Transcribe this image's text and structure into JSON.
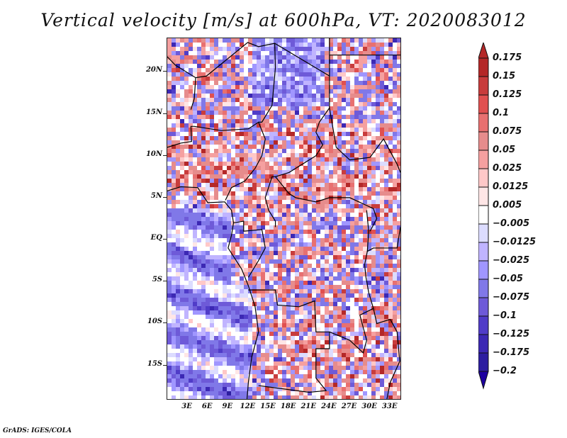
{
  "title": "Vertical velocity [m/s] at 600hPa, VT: 2020083012",
  "footer": "GrADS: IGES/COLA",
  "map": {
    "region": "Central/West Africa",
    "lat_range": [
      -19,
      24
    ],
    "lon_range": [
      0,
      34.5
    ],
    "y_ticks": [
      {
        "label": "20N",
        "lat": 20
      },
      {
        "label": "15N",
        "lat": 15
      },
      {
        "label": "10N",
        "lat": 10
      },
      {
        "label": "5N",
        "lat": 5
      },
      {
        "label": "EQ",
        "lat": 0
      },
      {
        "label": "5S",
        "lat": -5
      },
      {
        "label": "10S",
        "lat": -10
      },
      {
        "label": "15S",
        "lat": -15
      }
    ],
    "x_ticks": [
      {
        "label": "3E",
        "lon": 3
      },
      {
        "label": "6E",
        "lon": 6
      },
      {
        "label": "9E",
        "lon": 9
      },
      {
        "label": "12E",
        "lon": 12
      },
      {
        "label": "15E",
        "lon": 15
      },
      {
        "label": "18E",
        "lon": 18
      },
      {
        "label": "21E",
        "lon": 21
      },
      {
        "label": "24E",
        "lon": 24
      },
      {
        "label": "27E",
        "lon": 27
      },
      {
        "label": "30E",
        "lon": 30
      },
      {
        "label": "33E",
        "lon": 33
      }
    ]
  },
  "colorbar": {
    "levels": [
      {
        "label": "0.175",
        "color": "#b42828"
      },
      {
        "label": "0.15",
        "color": "#c83c3c"
      },
      {
        "label": "0.125",
        "color": "#e05050"
      },
      {
        "label": "0.1",
        "color": "#e87070"
      },
      {
        "label": "0.075",
        "color": "#e68c8c"
      },
      {
        "label": "0.05",
        "color": "#f5a0a0"
      },
      {
        "label": "0.025",
        "color": "#ffc8c8"
      },
      {
        "label": "0.0125",
        "color": "#ffe6e6"
      },
      {
        "label": "0.005",
        "color": "#ffffff"
      },
      {
        "label": "-0.005",
        "color": "#dcdcff"
      },
      {
        "label": "-0.0125",
        "color": "#c0b4ff"
      },
      {
        "label": "-0.025",
        "color": "#a096ff"
      },
      {
        "label": "-0.05",
        "color": "#8078e8"
      },
      {
        "label": "-0.075",
        "color": "#6e5ad8"
      },
      {
        "label": "-0.1",
        "color": "#503cc8"
      },
      {
        "label": "-0.125",
        "color": "#3c28b4"
      },
      {
        "label": "-0.175",
        "color": "#2d1ea0"
      },
      {
        "label": "-0.2",
        "color": "#1e00a0"
      }
    ],
    "top_arrow_color": "#b42828",
    "first_box_color": "#b42828"
  }
}
